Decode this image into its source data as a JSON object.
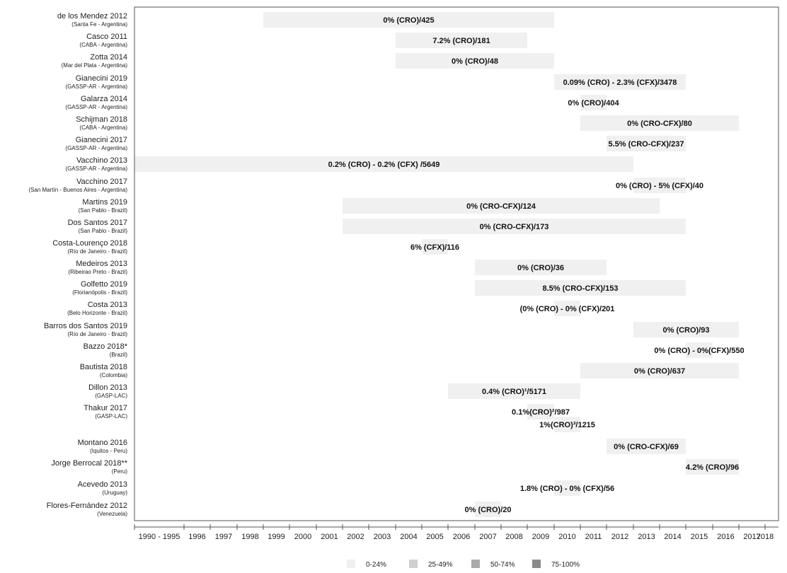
{
  "chart_data": {
    "type": "bar",
    "subtype": "horizontal-range",
    "x_axis": {
      "ticks": [
        "1990 - 1995",
        "1996",
        "1997",
        "1998",
        "1999",
        "2000",
        "2001",
        "2002",
        "2003",
        "2004",
        "2005",
        "2006",
        "2007",
        "2008",
        "2009",
        "2010",
        "2011",
        "2012",
        "2013",
        "2014",
        "2015",
        "2016",
        "2017",
        "2018"
      ]
    },
    "legend": {
      "placement": "bottom",
      "items": [
        {
          "label": "0-24%",
          "color": "#f0f0f0"
        },
        {
          "label": "25-49%",
          "color": "#d0d0d0"
        },
        {
          "label": "50-74%",
          "color": "#aaaaaa"
        },
        {
          "label": "75-100%",
          "color": "#8a8a8a"
        }
      ]
    },
    "studies": [
      {
        "name": "de los Mendez 2012",
        "location": "(Santa Fe - Argentina)",
        "label": "0% (CRO)/425",
        "start": "1999",
        "end": "2010"
      },
      {
        "name": "Casco 2011",
        "location": "(CABA - Argentina)",
        "label": "7.2% (CRO)/181",
        "start": "2004",
        "end": "2009"
      },
      {
        "name": "Zotta 2014",
        "location": "(Mar del Plata - Argentina)",
        "label": "0% (CRO)/48",
        "start": "2004",
        "end": "2010"
      },
      {
        "name": "Gianecini 2019",
        "location": "(GASSP-AR - Argentina)",
        "label": "0.09% (CRO) - 2.3% (CFX)/3478",
        "start": "2010",
        "end": "2015"
      },
      {
        "name": "Galarza 2014",
        "location": "(GASSP-AR - Argentina)",
        "label": "0% (CRO)/404",
        "start": "2011",
        "end": "2012"
      },
      {
        "name": "Schijman 2018",
        "location": "(CABA - Argentina)",
        "label": "0% (CRO-CFX)/80",
        "start": "2011",
        "end": "2017"
      },
      {
        "name": "Gianecini 2017",
        "location": "(GASSP-AR - Argentina)",
        "label": "5.5% (CRO-CFX)/237",
        "start": "2012",
        "end": "2015"
      },
      {
        "name": "Vacchino 2013",
        "location": "(GASSP-AR - Argentina)",
        "label": "0.2% (CRO) - 0.2% (CFX) /5649",
        "start": "1990 - 1995",
        "end": "2013"
      },
      {
        "name": "Vacchino 2017",
        "location": "(San Martín - Buenos Aires - Argentina)",
        "label": "0% (CRO) - 5% (CFX)/40",
        "start": "2013",
        "end": "2015"
      },
      {
        "name": "Martins 2019",
        "location": "(San Pablo - Brazil)",
        "label": "0% (CRO-CFX)/124",
        "start": "2002",
        "end": "2014"
      },
      {
        "name": "Dos Santos 2017",
        "location": "(San Pablo - Brazil)",
        "label": "0% (CRO-CFX)/173",
        "start": "2002",
        "end": "2015"
      },
      {
        "name": "Costa-Lourenço 2018",
        "location": "(Río de Janeiro - Brazil)",
        "label": "6% (CFX)/116",
        "start": "2005",
        "end": "2006"
      },
      {
        "name": "Medeiros 2013",
        "location": "(Ribeirao Preto - Brazil)",
        "label": "0% (CRO)/36",
        "start": "2007",
        "end": "2012"
      },
      {
        "name": "Golfetto 2019",
        "location": "(Florianópolis - Brazil)",
        "label": "8.5% (CRO-CFX)/153",
        "start": "2007",
        "end": "2015"
      },
      {
        "name": "Costa 2013",
        "location": "(Belo Horizonte - Brazil)",
        "label": "(0% (CRO) - 0% (CFX)/201",
        "start": "2010",
        "end": "2011"
      },
      {
        "name": "Barros dos Santos 2019",
        "location": "(Río de Janeiro - Brazil)",
        "label": "0% (CRO)/93",
        "start": "2013",
        "end": "2017"
      },
      {
        "name": "Bazzo 2018*",
        "location": "(Brazil)",
        "label": "0% (CRO) - 0%(CFX)/550",
        "start": "2015",
        "end": "2016"
      },
      {
        "name": "Bautista 2018",
        "location": "(Colombia)",
        "label": "0% (CRO)/637",
        "start": "2011",
        "end": "2017"
      },
      {
        "name": "Dillon 2013",
        "location": "(GASP-LAC)",
        "label": "0.4% (CRO)¹/5171",
        "start": "2006",
        "end": "2011"
      },
      {
        "name": "Thakur 2017",
        "location": "(GASP-LAC)",
        "label": "0.1%(CRO)²/987",
        "start": "2009",
        "end": "2010"
      },
      {
        "name": "",
        "location": "",
        "label": "1%(CRO)³/1215",
        "start": "2010",
        "end": "2011"
      },
      {
        "name": "Montano 2016",
        "location": "(Iquitos - Peru)",
        "label": "0% (CRO-CFX)/69",
        "start": "2012",
        "end": "2015"
      },
      {
        "name": "Jorge Berrocal 2018**",
        "location": "(Peru)",
        "label": "4.2% (CRO)/96",
        "start": "2015",
        "end": "2017"
      },
      {
        "name": "Acevedo 2013",
        "location": "(Uruguay)",
        "label": "1.8% (CRO) - 0% (CFX)/56",
        "start": "2010",
        "end": "2011"
      },
      {
        "name": "Flores-Fernández 2012",
        "location": "(Venezuela)",
        "label": "0% (CRO)/20",
        "start": "2007",
        "end": "2008"
      }
    ]
  }
}
